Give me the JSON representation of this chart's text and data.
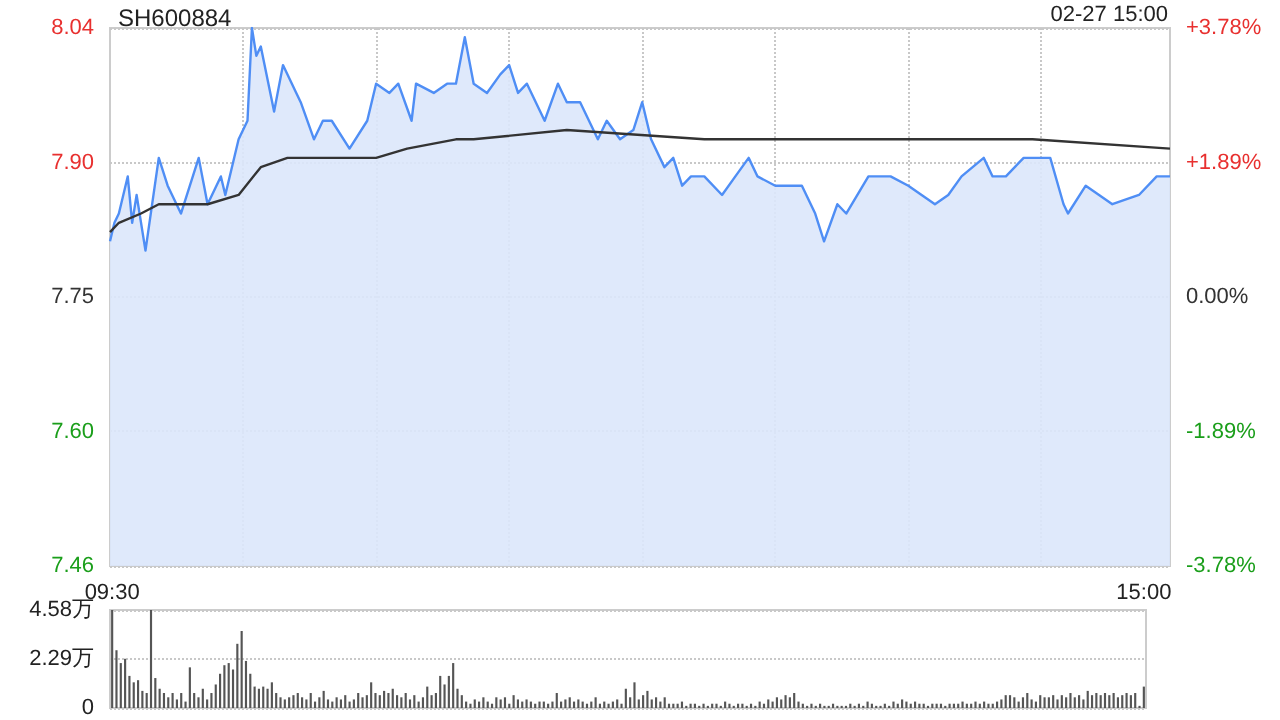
{
  "chart_data": [
    {
      "type": "line",
      "title": "SH600884",
      "annotations": [
        "02-27 15:00"
      ],
      "categories": [
        null,
        null,
        null,
        null,
        null,
        null,
        null,
        null,
        null,
        null,
        null,
        null,
        null,
        null,
        null,
        null,
        null,
        null,
        null,
        null,
        null,
        null,
        null,
        null,
        null,
        null,
        null,
        null,
        null,
        null,
        null,
        null,
        null,
        null,
        null,
        null,
        null,
        null,
        null,
        null,
        null,
        null,
        null,
        null,
        null,
        null,
        null,
        null,
        null,
        null,
        null,
        null,
        null,
        null,
        null,
        null,
        null,
        null,
        null,
        null,
        null,
        null,
        null,
        null,
        null,
        null,
        null,
        null,
        null,
        null,
        null,
        null,
        null,
        null,
        null,
        null,
        null,
        null,
        null,
        null,
        null,
        null,
        null,
        null,
        null,
        null,
        null,
        null,
        null,
        null,
        null,
        null,
        null,
        null,
        null,
        null,
        null,
        null,
        null,
        null,
        null,
        null,
        null,
        null,
        null,
        null,
        null,
        null,
        null,
        null,
        null,
        null,
        null,
        null,
        null,
        null,
        null,
        null,
        null,
        null,
        null,
        null,
        null,
        null,
        null,
        null,
        null,
        null,
        null,
        null,
        null,
        null,
        null,
        null,
        null,
        null,
        null,
        null,
        null,
        null,
        null,
        null,
        null,
        null,
        null,
        null,
        null,
        null,
        null,
        null,
        null,
        null,
        null,
        null,
        null,
        null,
        null,
        null,
        null,
        null,
        null,
        null,
        null,
        null,
        null,
        null,
        null,
        null,
        null,
        null,
        null,
        null,
        null,
        null,
        null,
        null,
        null,
        null,
        null,
        null,
        null,
        null,
        null,
        null,
        null,
        null,
        null,
        null,
        null,
        null,
        null,
        null,
        null,
        null,
        null,
        null,
        null,
        null,
        null,
        null,
        null,
        null,
        null,
        null,
        null,
        null,
        null,
        null,
        null,
        null,
        null,
        null,
        null,
        null,
        null,
        null,
        null,
        null,
        null,
        null,
        null,
        null,
        null,
        null,
        null,
        null,
        null,
        null,
        null,
        null,
        null,
        null,
        null,
        null,
        null,
        null,
        null,
        null,
        null,
        null
      ],
      "ylim": [
        7.46,
        8.04
      ],
      "yticks": [
        7.46,
        {
          "value": 7.605,
          "label": "7.60"
        },
        7.75,
        {
          "value": 7.895,
          "label": "7.90"
        },
        8.04
      ],
      "y2lim": [
        -3.78,
        3.78
      ],
      "y2ticks": [
        {
          "value": -3.78,
          "label": "-3.78%"
        },
        {
          "value": -1.89,
          "label": "-1.89%"
        },
        {
          "value": 0,
          "label": "0.00%"
        },
        {
          "value": 1.89,
          "label": "+1.89%"
        },
        {
          "value": 3.78,
          "label": "+3.78%"
        }
      ],
      "grid": true,
      "tick_labels": "y",
      "series": [
        {
          "type": "area",
          "color": "#4f8ef5",
          "values": [
            7.81,
            7.83,
            7.84,
            null,
            7.88,
            7.83,
            7.86,
            null,
            7.8,
            null,
            null,
            7.9,
            null,
            7.87,
            null,
            null,
            7.84,
            null,
            null,
            null,
            7.9,
            null,
            7.85,
            null,
            null,
            7.88,
            7.86,
            null,
            null,
            7.92,
            null,
            7.94,
            8.04,
            8.01,
            8.02,
            null,
            null,
            7.95,
            null,
            8.0,
            null,
            null,
            7.97,
            7.96,
            null,
            null,
            7.92,
            null,
            7.94,
            null,
            7.94,
            null,
            null,
            null,
            7.91,
            null,
            null,
            null,
            7.94,
            null,
            7.98,
            null,
            null,
            7.97,
            null,
            7.98,
            null,
            null,
            7.94,
            7.98,
            null,
            null,
            null,
            7.97,
            null,
            null,
            7.98,
            null,
            7.98,
            null,
            8.03,
            null,
            7.98,
            null,
            null,
            7.97,
            null,
            null,
            7.99,
            null,
            8.0,
            null,
            7.97,
            null,
            7.98,
            null,
            null,
            null,
            7.94,
            null,
            null,
            7.98,
            null,
            7.96,
            null,
            null,
            7.96,
            null,
            null,
            null,
            7.92,
            null,
            7.94,
            null,
            null,
            7.92,
            null,
            null,
            7.93,
            null,
            7.96,
            null,
            7.92,
            null,
            null,
            7.89,
            null,
            7.9,
            null,
            7.87,
            null,
            7.88,
            null,
            null,
            7.88,
            null,
            null,
            null,
            7.86,
            null,
            null,
            7.88,
            null,
            null,
            7.9,
            null,
            7.88,
            null,
            null,
            null,
            7.87,
            null,
            null,
            null,
            null,
            null,
            7.87,
            null,
            null,
            7.84,
            null,
            7.81,
            null,
            null,
            7.85,
            null,
            7.84,
            null,
            null,
            null,
            null,
            7.88,
            null,
            null,
            null,
            null,
            7.88,
            null,
            null,
            null,
            7.87,
            null,
            null,
            7.86,
            null,
            null,
            7.85,
            null,
            null,
            7.86,
            null,
            null,
            7.88,
            null,
            null,
            null,
            null,
            7.9,
            null,
            7.88,
            null,
            null,
            7.88,
            null,
            null,
            null,
            7.9,
            null,
            null,
            null,
            null,
            null,
            7.9,
            null,
            null,
            7.85,
            7.84,
            null,
            null,
            null,
            7.87,
            null,
            null,
            null,
            null,
            null,
            7.85,
            null,
            null,
            null,
            null,
            null,
            7.86,
            null,
            null,
            null,
            7.88,
            null,
            null,
            7.88
          ]
        },
        {
          "type": "line",
          "color": "#333333",
          "values": [
            7.82,
            null,
            7.83,
            null,
            null,
            null,
            null,
            7.84,
            null,
            null,
            null,
            7.85,
            null,
            null,
            null,
            null,
            7.85,
            null,
            null,
            null,
            null,
            null,
            7.85,
            null,
            null,
            null,
            null,
            null,
            null,
            7.86,
            null,
            null,
            null,
            null,
            7.89,
            null,
            null,
            null,
            null,
            null,
            7.9,
            null,
            null,
            null,
            null,
            null,
            null,
            null,
            null,
            null,
            null,
            7.9,
            null,
            null,
            null,
            null,
            null,
            null,
            null,
            null,
            7.9,
            null,
            null,
            null,
            null,
            null,
            null,
            7.91,
            null,
            null,
            null,
            null,
            null,
            null,
            null,
            null,
            null,
            null,
            7.92,
            null,
            null,
            null,
            7.92,
            null,
            null,
            null,
            null,
            null,
            null,
            null,
            null,
            null,
            null,
            null,
            null,
            null,
            null,
            null,
            null,
            null,
            null,
            null,
            null,
            7.93,
            null,
            null,
            null,
            null,
            null,
            null,
            null,
            null,
            null,
            null,
            null,
            null,
            null,
            null,
            null,
            null,
            null,
            null,
            null,
            null,
            null,
            null,
            null,
            null,
            null,
            null,
            null,
            null,
            null,
            null,
            7.92,
            null,
            null,
            null,
            null,
            null,
            null,
            null,
            null,
            null,
            null,
            null,
            null,
            null,
            null,
            null,
            7.92,
            null,
            null,
            null,
            null,
            null,
            null,
            null,
            null,
            null,
            null,
            null,
            7.92,
            null,
            null,
            null,
            null,
            null,
            null,
            null,
            null,
            null,
            null,
            null,
            null,
            null,
            null,
            null,
            null,
            null,
            null,
            null,
            null,
            null,
            null,
            null,
            null,
            null,
            null,
            null,
            null,
            null,
            null,
            null,
            null,
            null,
            null,
            null,
            null,
            null,
            null,
            null,
            null,
            null,
            null,
            null,
            null,
            null,
            7.92,
            null,
            null,
            null,
            null,
            null,
            null,
            null,
            null,
            null,
            null,
            null,
            null,
            null,
            null,
            null,
            null,
            null,
            null,
            null,
            null,
            null,
            null,
            null,
            null,
            null,
            null,
            null,
            null,
            null,
            null,
            7.91
          ]
        }
      ]
    },
    {
      "type": "bar",
      "color": "#555555",
      "ylim": [
        0,
        4.58
      ],
      "yticks": [
        0,
        {
          "value": 2.29,
          "label": "2.29万"
        },
        {
          "value": 4.58,
          "label": "4.58万"
        }
      ],
      "grid": "y",
      "categories": [
        "09:30",
        null,
        null,
        null,
        null,
        null,
        null,
        null,
        null,
        null,
        null,
        null,
        null,
        null,
        null,
        null,
        null,
        null,
        null,
        null,
        null,
        null,
        null,
        null,
        null,
        null,
        null,
        null,
        null,
        null,
        null,
        null,
        null,
        null,
        null,
        null,
        null,
        null,
        null,
        null,
        null,
        null,
        null,
        null,
        null,
        null,
        null,
        null,
        null,
        null,
        null,
        null,
        null,
        null,
        null,
        null,
        null,
        null,
        null,
        null,
        null,
        null,
        null,
        null,
        null,
        null,
        null,
        null,
        null,
        null,
        null,
        null,
        null,
        null,
        null,
        null,
        null,
        null,
        null,
        null,
        null,
        null,
        null,
        null,
        null,
        null,
        null,
        null,
        null,
        null,
        null,
        null,
        null,
        null,
        null,
        null,
        null,
        null,
        null,
        null,
        null,
        null,
        null,
        null,
        null,
        null,
        null,
        null,
        null,
        null,
        null,
        null,
        null,
        null,
        null,
        null,
        null,
        null,
        null,
        null,
        null,
        null,
        null,
        null,
        null,
        null,
        null,
        null,
        null,
        null,
        null,
        null,
        null,
        null,
        null,
        null,
        null,
        null,
        null,
        null,
        null,
        null,
        null,
        null,
        null,
        null,
        null,
        null,
        null,
        null,
        null,
        null,
        null,
        null,
        null,
        null,
        null,
        null,
        null,
        null,
        null,
        null,
        null,
        null,
        null,
        null,
        null,
        null,
        null,
        null,
        null,
        null,
        null,
        null,
        null,
        null,
        null,
        null,
        null,
        null,
        null,
        null,
        null,
        null,
        null,
        null,
        null,
        null,
        null,
        null,
        null,
        null,
        null,
        null,
        null,
        null,
        null,
        null,
        null,
        null,
        null,
        null,
        null,
        null,
        null,
        null,
        null,
        null,
        null,
        null,
        null,
        null,
        null,
        null,
        null,
        null,
        null,
        null,
        null,
        null,
        null,
        null,
        null,
        null,
        null,
        null,
        null,
        null,
        null,
        null,
        null,
        null,
        null,
        null,
        null,
        null,
        null,
        null,
        null,
        "15:00"
      ],
      "values": [
        4.58,
        2.7,
        2.1,
        2.3,
        1.5,
        1.2,
        1.3,
        0.8,
        0.7,
        4.58,
        1.4,
        0.9,
        0.7,
        0.5,
        0.7,
        0.4,
        0.7,
        0.3,
        1.9,
        0.7,
        0.5,
        0.9,
        0.4,
        0.7,
        1.1,
        1.6,
        2.0,
        2.1,
        1.8,
        3.0,
        3.6,
        2.2,
        1.6,
        1.0,
        0.9,
        1.0,
        0.9,
        1.2,
        0.7,
        0.5,
        0.4,
        0.5,
        0.6,
        0.7,
        0.5,
        0.4,
        0.7,
        0.3,
        0.5,
        0.8,
        0.4,
        0.3,
        0.5,
        0.4,
        0.6,
        0.3,
        0.4,
        0.7,
        0.5,
        0.6,
        1.2,
        0.7,
        0.6,
        0.8,
        0.7,
        0.9,
        0.6,
        0.5,
        0.7,
        0.4,
        0.6,
        0.3,
        0.5,
        1.0,
        0.6,
        0.7,
        1.5,
        1.1,
        1.5,
        2.1,
        0.9,
        0.6,
        0.3,
        0.2,
        0.4,
        0.3,
        0.5,
        0.3,
        0.2,
        0.5,
        0.4,
        0.5,
        0.2,
        0.6,
        0.4,
        0.3,
        0.4,
        0.3,
        0.2,
        0.3,
        0.3,
        0.2,
        0.3,
        0.7,
        0.3,
        0.4,
        0.5,
        0.3,
        0.4,
        0.3,
        0.2,
        0.3,
        0.5,
        0.2,
        0.3,
        0.2,
        0.3,
        0.4,
        0.2,
        0.9,
        0.5,
        1.2,
        0.4,
        0.6,
        0.8,
        0.4,
        0.5,
        0.3,
        0.5,
        0.2,
        0.2,
        0.2,
        0.3,
        0.1,
        0.2,
        0.2,
        0.1,
        0.2,
        0.1,
        0.2,
        0.2,
        0.1,
        0.3,
        0.2,
        0.1,
        0.2,
        0.2,
        0.1,
        0.2,
        0.1,
        0.3,
        0.2,
        0.4,
        0.3,
        0.5,
        0.4,
        0.6,
        0.5,
        0.7,
        0.3,
        0.2,
        0.1,
        0.2,
        0.1,
        0.2,
        0.1,
        0.1,
        0.2,
        0.1,
        0.1,
        0.1,
        0.2,
        0.1,
        0.2,
        0.1,
        0.3,
        0.2,
        0.1,
        0.1,
        0.2,
        0.1,
        0.3,
        0.2,
        0.4,
        0.3,
        0.2,
        0.3,
        0.2,
        0.2,
        0.1,
        0.2,
        0.2,
        0.2,
        0.1,
        0.2,
        0.2,
        0.2,
        0.3,
        0.2,
        0.2,
        0.3,
        0.2,
        0.3,
        0.2,
        0.2,
        0.3,
        0.4,
        0.6,
        0.6,
        0.5,
        0.3,
        0.5,
        0.7,
        0.4,
        0.3,
        0.6,
        0.5,
        0.5,
        0.6,
        0.4,
        0.6,
        0.5,
        0.7,
        0.5,
        0.6,
        0.4,
        0.8,
        0.6,
        0.7,
        0.6,
        0.7,
        0.6,
        0.7,
        0.5,
        0.6,
        0.7,
        0.6,
        0.7,
        0.1,
        1.0
      ]
    }
  ]
}
